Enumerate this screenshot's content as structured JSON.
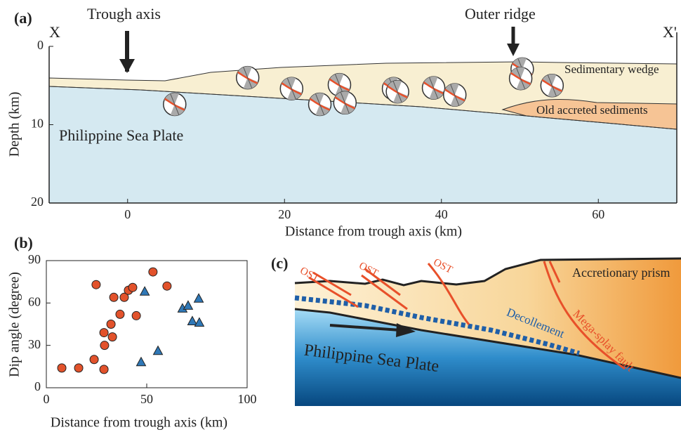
{
  "chart_data": [
    {
      "type": "section",
      "label": "(a)",
      "x_label": "Distance from trough axis (km)",
      "y_label": "Depth (km)",
      "xlim": [
        -10,
        70
      ],
      "ylim": [
        20,
        0
      ],
      "xticks": [
        0,
        20,
        40,
        60
      ],
      "yticks": [
        0,
        10,
        20
      ],
      "annotations": [
        "X",
        "X'",
        "Trough axis",
        "Outer ridge",
        "Sedimentary wedge",
        "Old accreted sediments",
        "Philippine Sea Plate"
      ],
      "series": [
        {
          "x": [
            6.0,
            15.3,
            20.9,
            24.5,
            27.0,
            27.7,
            33.9,
            34.4,
            39.0,
            41.7,
            50.3,
            50.1,
            54.1
          ],
          "values": [
            7.4,
            4.0,
            5.4,
            7.4,
            4.9,
            7.2,
            5.4,
            5.8,
            5.3,
            6.2,
            2.9,
            4.1,
            5.0
          ]
        }
      ]
    },
    {
      "type": "scatter",
      "label": "(b)",
      "x_label": "Distance from trough axis (km)",
      "y_label": "Dip angle (degree)",
      "xlim": [
        0,
        100
      ],
      "ylim": [
        0,
        90
      ],
      "xticks": [
        0,
        50,
        100
      ],
      "yticks": [
        0,
        30,
        60,
        90
      ],
      "series": [
        {
          "marker": "circle",
          "color": "#e2522b",
          "x": [
            7.7,
            16.1,
            24.8,
            23.8,
            28.7,
            29.0,
            28.7,
            32.9,
            32.2,
            33.6,
            36.7,
            38.8,
            40.9,
            43.0,
            44.8,
            53.1,
            60.1
          ],
          "values": [
            14,
            14,
            73,
            20,
            13,
            30,
            39,
            36,
            45,
            64,
            52,
            64,
            69,
            71,
            51,
            82,
            72
          ]
        },
        {
          "marker": "triangle",
          "color": "#2f78b7",
          "x": [
            49.0,
            47.2,
            55.6,
            67.8,
            70.6,
            72.7,
            75.9,
            76.2
          ],
          "values": [
            68,
            18,
            26,
            56,
            58,
            47,
            63,
            46
          ]
        }
      ]
    }
  ],
  "diagram": {
    "label": "(c)",
    "texts": [
      "OST",
      "OST",
      "OST",
      "Accretionary prism",
      "Decollement",
      "Mega-splay fault",
      "Philippine Sea Plate"
    ]
  }
}
